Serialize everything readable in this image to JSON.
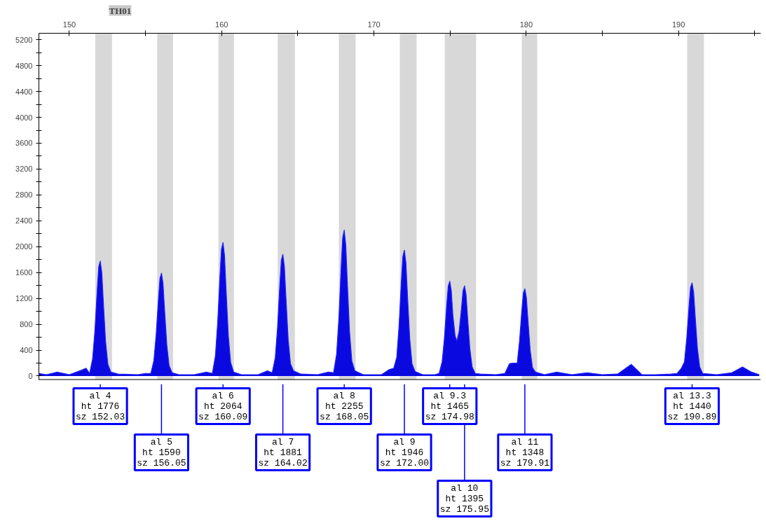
{
  "chart_data": {
    "type": "area",
    "title": "TH01",
    "xlim": [
      148,
      195.4
    ],
    "ylim": [
      -60,
      5300
    ],
    "xticks": [
      150,
      {
        "value": 155,
        "label": null
      },
      160,
      {
        "value": 165,
        "label": null
      },
      170,
      {
        "value": 175,
        "label": null
      },
      180,
      {
        "value": 185,
        "label": null
      },
      190,
      {
        "value": 195,
        "label": null
      }
    ],
    "yticks": [
      0,
      {
        "value": 200,
        "label": null
      },
      400,
      {
        "value": 600,
        "label": null
      },
      800,
      {
        "value": 1000,
        "label": null
      },
      1200,
      {
        "value": 1400,
        "label": null
      },
      1600,
      {
        "value": 1800,
        "label": null
      },
      2000,
      {
        "value": 2200,
        "label": null
      },
      2400,
      {
        "value": 2600,
        "label": null
      },
      2800,
      {
        "value": 3000,
        "label": null
      },
      3200,
      {
        "value": 3400,
        "label": null
      },
      3600,
      {
        "value": 3800,
        "label": null
      },
      4000,
      {
        "value": 4200,
        "label": null
      },
      4400,
      {
        "value": 4600,
        "label": null
      },
      4800,
      {
        "value": 5000,
        "label": null
      },
      5200
    ],
    "grid": false,
    "bands": [
      {
        "axis": "x",
        "from": 151.7,
        "to": 152.8,
        "color": "#d8d8d8"
      },
      {
        "axis": "x",
        "from": 155.77,
        "to": 156.81,
        "color": "#d8d8d8"
      },
      {
        "axis": "x",
        "from": 159.79,
        "to": 160.81,
        "color": "#d8d8d8"
      },
      {
        "axis": "x",
        "from": 163.68,
        "to": 164.81,
        "color": "#d8d8d8"
      },
      {
        "axis": "x",
        "from": 167.7,
        "to": 168.8,
        "color": "#d8d8d8"
      },
      {
        "axis": "x",
        "from": 171.7,
        "to": 172.8,
        "color": "#d8d8d8"
      },
      {
        "axis": "x",
        "from": 174.65,
        "to": 176.71,
        "color": "#d8d8d8"
      },
      {
        "axis": "x",
        "from": 179.71,
        "to": 180.72,
        "color": "#d8d8d8"
      },
      {
        "axis": "x",
        "from": 190.57,
        "to": 191.67,
        "color": "#d8d8d8"
      }
    ],
    "series": [
      {
        "color": "#0a0ae0",
        "x": [
          148.0,
          148.5,
          149.2,
          150.0,
          150.8,
          151.1,
          151.33,
          151.53,
          151.68,
          151.83,
          151.93,
          152.03,
          152.13,
          152.23,
          152.38,
          152.53,
          152.73,
          153.2,
          154.5,
          155.0,
          155.35,
          155.55,
          155.7,
          155.85,
          155.95,
          156.05,
          156.15,
          156.25,
          156.4,
          156.55,
          156.75,
          157.2,
          158.2,
          159.0,
          159.39,
          159.59,
          159.74,
          159.89,
          159.99,
          160.09,
          160.19,
          160.29,
          160.44,
          160.59,
          160.79,
          161.3,
          162.4,
          163.0,
          163.32,
          163.52,
          163.67,
          163.82,
          163.92,
          164.02,
          164.12,
          164.22,
          164.37,
          164.52,
          164.72,
          165.2,
          166.3,
          167.0,
          167.35,
          167.55,
          167.7,
          167.85,
          167.95,
          168.05,
          168.15,
          168.25,
          168.4,
          168.55,
          168.75,
          169.3,
          170.5,
          171.0,
          171.3,
          171.5,
          171.65,
          171.8,
          171.9,
          172.0,
          172.1,
          172.2,
          172.35,
          172.5,
          172.7,
          173.2,
          174.0,
          174.28,
          174.48,
          174.63,
          174.78,
          174.88,
          174.98,
          175.08,
          175.18,
          175.33,
          175.45,
          175.6,
          175.75,
          175.85,
          175.95,
          176.05,
          176.15,
          176.3,
          176.45,
          176.65,
          177.0,
          178.0,
          178.6,
          178.9,
          179.1,
          179.21,
          179.41,
          179.56,
          179.71,
          179.81,
          179.91,
          180.01,
          180.11,
          180.26,
          180.41,
          180.61,
          181.2,
          182.0,
          183.0,
          184.0,
          185.0,
          186.0,
          186.9,
          187.6,
          188.5,
          189.5,
          189.9,
          190.19,
          190.39,
          190.54,
          190.69,
          190.79,
          190.89,
          190.99,
          191.09,
          191.24,
          191.39,
          191.59,
          192.5,
          193.5,
          194.2,
          194.8,
          195.3
        ],
        "values": [
          40,
          20,
          60,
          20,
          90,
          120,
          40,
          270,
          710,
          1330,
          1690,
          1776,
          1600,
          1150,
          530,
          180,
          60,
          30,
          20,
          40,
          40,
          240,
          640,
          1190,
          1510,
          1590,
          1430,
          1030,
          480,
          160,
          50,
          20,
          20,
          60,
          40,
          310,
          830,
          1550,
          1960,
          2064,
          1860,
          1340,
          620,
          210,
          60,
          20,
          20,
          80,
          50,
          280,
          750,
          1410,
          1790,
          1881,
          1690,
          1220,
          560,
          190,
          80,
          30,
          20,
          60,
          50,
          340,
          900,
          1690,
          2140,
          2255,
          2030,
          1470,
          680,
          230,
          80,
          20,
          20,
          100,
          120,
          290,
          780,
          1460,
          1850,
          1946,
          1750,
          1260,
          580,
          190,
          70,
          20,
          20,
          40,
          220,
          590,
          1100,
          1390,
          1465,
          1320,
          950,
          620,
          540,
          700,
          1050,
          1320,
          1395,
          1260,
          910,
          420,
          140,
          40,
          30,
          20,
          40,
          190,
          200,
          200,
          200,
          540,
          1010,
          1280,
          1348,
          1210,
          880,
          400,
          130,
          60,
          20,
          60,
          20,
          50,
          20,
          30,
          180,
          20,
          20,
          30,
          40,
          120,
          220,
          580,
          1080,
          1370,
          1440,
          1300,
          940,
          430,
          140,
          40,
          20,
          50,
          140,
          60,
          20
        ]
      }
    ],
    "annotations": [
      {
        "text": "al 4\nht 1776\nsz 152.03",
        "x": 152.03
      },
      {
        "text": "al 5\nht 1590\nsz 156.05",
        "x": 156.05
      },
      {
        "text": "al 6\nht 2064\nsz 160.09",
        "x": 160.09
      },
      {
        "text": "al 7\nht 1881\nsz 164.02",
        "x": 164.02
      },
      {
        "text": "al 8\nht 2255\nsz 168.05",
        "x": 168.05
      },
      {
        "text": "al 9\nht 1946\nsz 172.00",
        "x": 172.0
      },
      {
        "text": "al 9.3\nht 1465\nsz 174.98",
        "x": 174.98
      },
      {
        "text": "al 10\nht 1395\nsz 175.95",
        "x": 175.95
      },
      {
        "text": "al 11\nht 1348\nsz 179.91",
        "x": 179.91
      },
      {
        "text": "al 13.3\nht 1440\nsz 190.89",
        "x": 190.89
      }
    ]
  }
}
